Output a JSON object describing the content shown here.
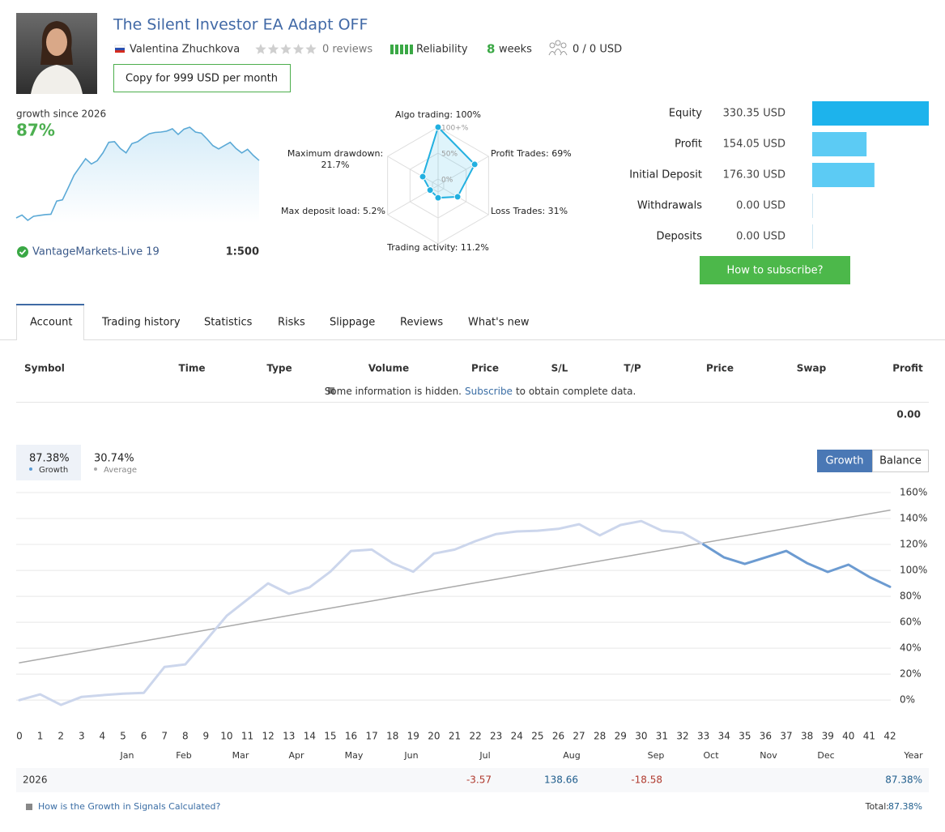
{
  "header": {
    "title": "The Silent Investor EA Adapt OFF",
    "author": "Valentina Zhuchkova",
    "reviews": "0 reviews",
    "reliability": "Reliability",
    "weeks_value": "8",
    "weeks_label": "weeks",
    "subscribers": "0 / 0 USD",
    "copy_button": "Copy for 999 USD per month"
  },
  "growth_card": {
    "label": "growth since 2026",
    "value": "87%",
    "broker": "VantageMarkets-Live 19",
    "leverage": "1:500"
  },
  "radar": {
    "ticks": [
      {
        "value": 100,
        "label": "100+%"
      },
      {
        "value": 50,
        "label": "50%"
      },
      {
        "value": 0,
        "label": "0%"
      }
    ],
    "items": [
      {
        "label": "Algo trading: 100%",
        "value": 100
      },
      {
        "label": "Profit Trades: 69%",
        "value": 69
      },
      {
        "label": "Loss Trades: 31%",
        "value": 31
      },
      {
        "label": "Trading activity: 11.2%",
        "value": 11.2
      },
      {
        "label": "Max deposit load: 5.2%",
        "value": 5.2
      },
      {
        "label": "Maximum drawdown: 21.7%",
        "value": 21.7
      }
    ]
  },
  "stats": {
    "items": [
      {
        "label": "Equity",
        "value": 330.35,
        "value_label": "330.35 USD",
        "color": "#1db3ec"
      },
      {
        "label": "Profit",
        "value": 154.05,
        "value_label": "154.05 USD",
        "color": "#5ccbf4"
      },
      {
        "label": "Initial Deposit",
        "value": 176.3,
        "value_label": "176.30 USD",
        "color": "#5ccbf4"
      },
      {
        "label": "Withdrawals",
        "value": 0,
        "value_label": "0.00 USD",
        "color": "#5ccbf4"
      },
      {
        "label": "Deposits",
        "value": 0,
        "value_label": "0.00 USD",
        "color": "#5ccbf4"
      }
    ],
    "subscribe_button": "How to subscribe?"
  },
  "tabs": [
    "Account",
    "Trading history",
    "Statistics",
    "Risks",
    "Slippage",
    "Reviews",
    "What's new"
  ],
  "table": {
    "columns": [
      "Symbol",
      "Time",
      "Type",
      "Volume",
      "Price",
      "S/L",
      "T/P",
      "Price",
      "Swap",
      "Profit"
    ],
    "notice": {
      "text": "Some information is hidden.",
      "link": "Subscribe",
      "rest": "to obtain complete data."
    },
    "total": "0.00"
  },
  "chart_data": {
    "type": "line",
    "buttons": [
      "Growth",
      "Balance"
    ],
    "x": [
      0,
      1,
      2,
      3,
      4,
      5,
      6,
      7,
      8,
      9,
      10,
      11,
      12,
      13,
      14,
      15,
      16,
      17,
      18,
      19,
      20,
      21,
      22,
      23,
      24,
      25,
      26,
      27,
      28,
      29,
      30,
      31,
      32,
      33,
      34,
      35,
      36,
      37,
      38,
      39,
      40,
      41,
      42
    ],
    "xlim": [
      0,
      42
    ],
    "xticks": [
      0,
      1,
      2,
      3,
      4,
      5,
      6,
      7,
      8,
      9,
      10,
      11,
      12,
      13,
      14,
      15,
      16,
      17,
      18,
      19,
      20,
      21,
      22,
      23,
      24,
      25,
      26,
      27,
      28,
      29,
      30,
      31,
      32,
      33,
      34,
      35,
      36,
      37,
      38,
      39,
      40,
      41,
      42
    ],
    "ylim": [
      -18,
      160
    ],
    "yticks": [
      {
        "value": 0,
        "label": "0%"
      },
      {
        "value": 20,
        "label": "20%"
      },
      {
        "value": 40,
        "label": "40%"
      },
      {
        "value": 60,
        "label": "60%"
      },
      {
        "value": 80,
        "label": "80%"
      },
      {
        "value": 100,
        "label": "100%"
      },
      {
        "value": 120,
        "label": "120%"
      },
      {
        "value": 140,
        "label": "140%"
      },
      {
        "value": 160,
        "label": "160%"
      }
    ],
    "grid": true,
    "series": [
      {
        "name": "Growth",
        "summary_label": "87.38%",
        "color": "#ccd6ec",
        "values": [
          0,
          4.4,
          -3.7,
          2.5,
          3.8,
          5,
          5.6,
          25.6,
          27.5,
          46,
          65,
          77.5,
          90,
          82,
          87,
          99,
          115,
          116,
          105.6,
          99,
          113,
          116,
          122.5,
          128,
          130,
          130.6,
          132,
          135.6,
          127,
          135,
          138,
          130.6,
          129,
          120,
          null,
          null,
          null,
          null,
          null,
          null,
          null,
          null,
          null
        ]
      },
      {
        "color": "#6c9bd1",
        "values": [
          null,
          null,
          null,
          null,
          null,
          null,
          null,
          null,
          null,
          null,
          null,
          null,
          null,
          null,
          null,
          null,
          null,
          null,
          null,
          null,
          null,
          null,
          null,
          null,
          null,
          null,
          null,
          null,
          null,
          null,
          null,
          null,
          null,
          120,
          110,
          105,
          110,
          115,
          105.6,
          98.8,
          104.4,
          95,
          87.38
        ]
      },
      {
        "name": "Average",
        "summary_label": "30.74%",
        "color": "#aaaaaa",
        "values": [
          28.8,
          31.6,
          34.4,
          37.2,
          40,
          42.8,
          45.6,
          48.4,
          51.2,
          54,
          56.8,
          59.6,
          62.4,
          65.2,
          68,
          70.8,
          73.6,
          76.4,
          79.2,
          82,
          84.8,
          87.6,
          90.4,
          93.2,
          96,
          98.8,
          101.6,
          104.4,
          107.2,
          110,
          112.8,
          115.6,
          118.4,
          121.2,
          124,
          126.8,
          129.6,
          132.4,
          135.2,
          138,
          140.8,
          143.6,
          146.4
        ]
      }
    ],
    "months": [
      "Jan",
      "Feb",
      "Mar",
      "Apr",
      "May",
      "Jun",
      "Jul",
      "Aug",
      "Sep",
      "Oct",
      "Nov",
      "Dec",
      "Year"
    ]
  },
  "year_row": {
    "year": "2026",
    "values": [
      null,
      null,
      null,
      null,
      null,
      null,
      "-3.57",
      "138.66",
      "-18.58",
      null,
      null,
      null
    ],
    "total": "87.38%"
  },
  "footer": {
    "link": "How is the Growth in Signals Calculated?",
    "total_label": "Total:",
    "total_value": "87.38%"
  }
}
